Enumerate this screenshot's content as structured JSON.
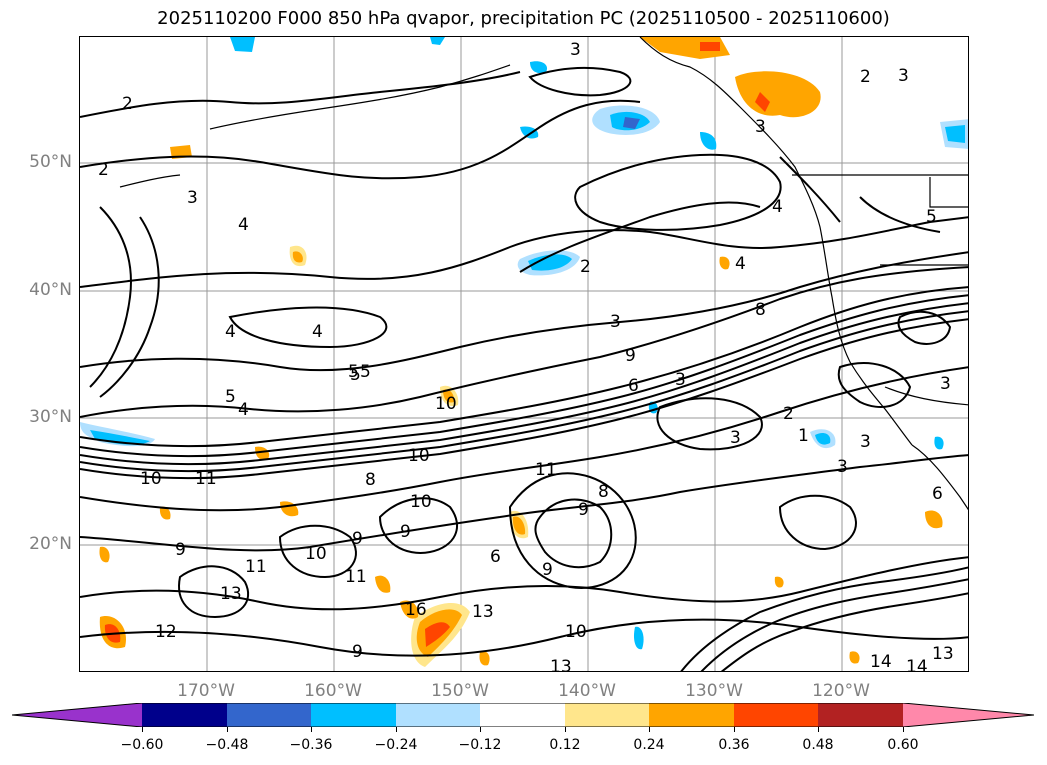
{
  "title": "2025110200 F000 850 hPa qvapor, precipitation PC (2025110500 - 2025110600)",
  "lat_labels": [
    "50°N",
    "40°N",
    "30°N",
    "20°N"
  ],
  "lon_labels": [
    "170°W",
    "160°W",
    "150°W",
    "140°W",
    "130°W",
    "120°W"
  ],
  "colorbar": {
    "ticks": [
      "−0.60",
      "−0.48",
      "−0.36",
      "−0.24",
      "−0.12",
      "0.12",
      "0.24",
      "0.36",
      "0.48",
      "0.60"
    ],
    "colors": [
      "#9932cc",
      "#00008b",
      "#3366cc",
      "#00bfff",
      "#b0e0ff",
      "#ffffff",
      "#ffe68c",
      "#ffa500",
      "#ff4500",
      "#b22222",
      "#ff88aa"
    ]
  },
  "contour_labels": [
    "2",
    "2",
    "3",
    "4",
    "5",
    "4",
    "4",
    "5",
    "4",
    "5",
    "3",
    "2",
    "3",
    "2",
    "3",
    "3",
    "4",
    "3",
    "4",
    "5",
    "3",
    "8",
    "9",
    "6",
    "5",
    "10",
    "11",
    "10",
    "11",
    "9",
    "8",
    "9",
    "10",
    "9",
    "10",
    "11",
    "12",
    "13",
    "16",
    "13",
    "10",
    "13",
    "9",
    "6",
    "8",
    "9",
    "9",
    "10",
    "11",
    "6",
    "14",
    "14",
    "13",
    "3",
    "1",
    "3",
    "2",
    "3"
  ]
}
